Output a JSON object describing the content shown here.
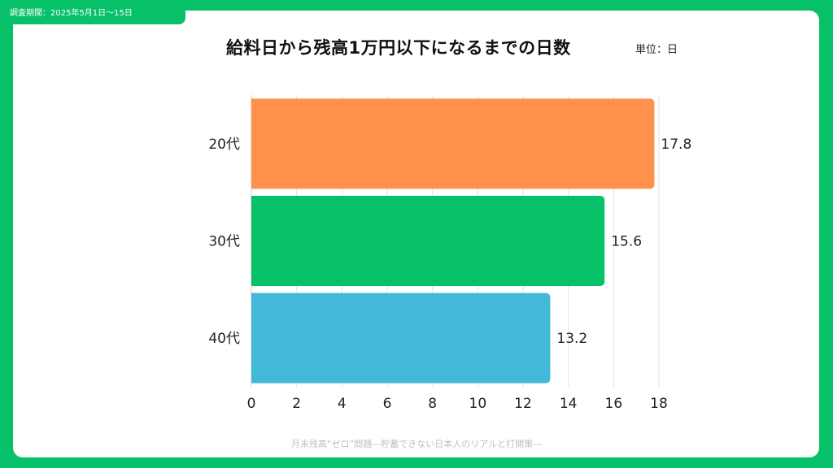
{
  "survey_period": "調査期間：2025年5月1日〜15日",
  "footer_text": "月末残高“ゼロ”問題―貯蓄できない日本人のリアルと打開策―",
  "colors": {
    "frame": "#06c167",
    "series": [
      "#ff914d",
      "#06c167",
      "#44b8d8"
    ]
  },
  "chart_data": {
    "type": "bar",
    "orientation": "horizontal",
    "title": "給料日から残高1万円以下になるまでの日数",
    "unit_label": "単位：日",
    "categories": [
      "20代",
      "30代",
      "40代"
    ],
    "values": [
      17.8,
      15.6,
      13.2
    ],
    "data_labels": [
      "17.8",
      "15.6",
      "13.2"
    ],
    "xlim": [
      0,
      18
    ],
    "xticks": [
      0,
      2,
      4,
      6,
      8,
      10,
      12,
      14,
      16,
      18
    ],
    "grid": true,
    "legend": "none"
  }
}
